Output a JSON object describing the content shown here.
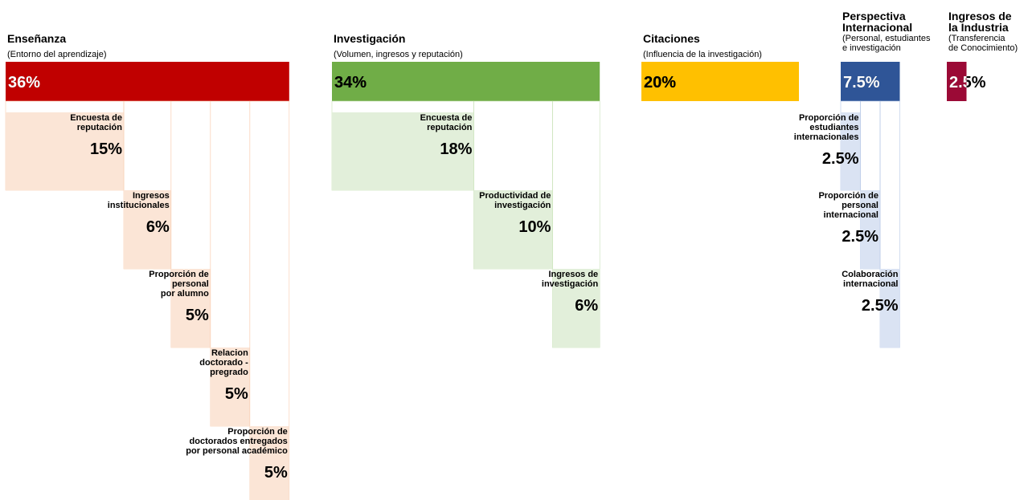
{
  "pillars": [
    {
      "title": [
        "Enseñanza"
      ],
      "subtitle": [
        "(Entorno del aprendizaje)"
      ],
      "weight": {
        "value": 36,
        "label": "36%"
      },
      "color": "#c00000",
      "text_color": "#ffffff",
      "sub_color": "#fbe5d6",
      "sub_border": "#f8cbad",
      "items": [
        {
          "label": [
            "Encuesta de",
            "reputación"
          ],
          "weight": {
            "value": 15,
            "label": "15%"
          }
        },
        {
          "label": [
            "Ingresos",
            "institucionales"
          ],
          "weight": {
            "value": 6,
            "label": "6%"
          }
        },
        {
          "label": [
            "Proporción de",
            "personal",
            "por alumno"
          ],
          "weight": {
            "value": 5,
            "label": "5%"
          }
        },
        {
          "label": [
            "Relacion",
            "doctorado -",
            "pregrado"
          ],
          "weight": {
            "value": 5,
            "label": "5%"
          }
        },
        {
          "label": [
            "Proporción de",
            "doctorados entregados",
            "por personal académico"
          ],
          "weight": {
            "value": 5,
            "label": "5%"
          }
        }
      ]
    },
    {
      "title": [
        "Investigación"
      ],
      "subtitle": [
        "(Volumen, ingresos y reputación)"
      ],
      "weight": {
        "value": 34,
        "label": "34%"
      },
      "color": "#70ad47",
      "text_color": "#000000",
      "sub_color": "#e2efda",
      "sub_border": "#c6e0b4",
      "items": [
        {
          "label": [
            "Encuesta de",
            "reputación"
          ],
          "weight": {
            "value": 18,
            "label": "18%"
          }
        },
        {
          "label": [
            "Productividad de",
            "investigación"
          ],
          "weight": {
            "value": 10,
            "label": "10%"
          }
        },
        {
          "label": [
            "Ingresos de",
            "investigación"
          ],
          "weight": {
            "value": 6,
            "label": "6%"
          }
        }
      ]
    },
    {
      "title": [
        "Citaciones"
      ],
      "subtitle": [
        "(Influencia de la investigación)"
      ],
      "weight": {
        "value": 20,
        "label": "20%"
      },
      "color": "#ffc000",
      "text_color": "#000000",
      "items": []
    },
    {
      "title": [
        "Perspectiva",
        "Internacional"
      ],
      "subtitle": [
        "(Personal, estudiantes",
        "e investigación"
      ],
      "weight": {
        "value": 7.5,
        "label": "7.5%"
      },
      "color": "#2f5597",
      "text_color": "#ffffff",
      "sub_color": "#dae3f3",
      "sub_border": "#b4c7e7",
      "items": [
        {
          "label": [
            "Proporción de",
            "estudiantes",
            "internacionales"
          ],
          "weight": {
            "value": 2.5,
            "label": "2.5%"
          }
        },
        {
          "label": [
            "Proporción de",
            "personal",
            "internacional"
          ],
          "weight": {
            "value": 2.5,
            "label": "2.5%"
          }
        },
        {
          "label": [
            "Colaboración",
            "internacional"
          ],
          "weight": {
            "value": 2.5,
            "label": "2.5%"
          }
        }
      ]
    },
    {
      "title": [
        "Ingresos de",
        "la Industria"
      ],
      "subtitle": [
        "(Transferencia",
        "de Conocimiento)"
      ],
      "weight": {
        "value": 2.5,
        "label": "2.5%"
      },
      "color": "#9b0a36",
      "text_color": "#ffffff",
      "items": []
    }
  ]
}
